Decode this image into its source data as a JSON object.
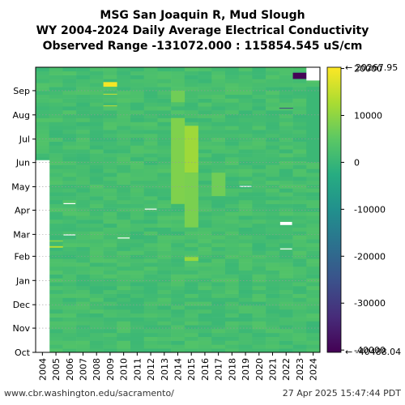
{
  "header": {
    "title_line1": "MSG San Joaquin R, Mud Slough",
    "title_line2": "WY 2004-2024 Daily Average Electrical Conductivity",
    "title_line3": "Observed Range -131072.000 : 115854.545 uS/cm"
  },
  "footer": {
    "source": "www.cbr.washington.edu/sacramento/",
    "timestamp": "27 Apr 2025 15:47:44 PDT"
  },
  "chart_data": {
    "type": "heatmap",
    "title": "MSG San Joaquin R, Mud Slough\nWY 2004-2024 Daily Average Electrical Conductivity\nObserved Range -131072.000 : 115854.545 uS/cm",
    "x_categories": [
      "2004",
      "2005",
      "2006",
      "2007",
      "2008",
      "2009",
      "2010",
      "2011",
      "2012",
      "2013",
      "2014",
      "2015",
      "2016",
      "2017",
      "2018",
      "2019",
      "2020",
      "2021",
      "2022",
      "2023",
      "2024"
    ],
    "y_categories": [
      "Oct",
      "Nov",
      "Dec",
      "Jan",
      "Feb",
      "Mar",
      "Apr",
      "May",
      "Jun",
      "Jul",
      "Aug",
      "Sep"
    ],
    "colorbar": {
      "ticks": [
        20000,
        10000,
        0,
        -10000,
        -20000,
        -30000,
        -40000
      ],
      "tick_labels": [
        "20000",
        "10000",
        "0",
        "-10000",
        "-20000",
        "-30000",
        "-40000"
      ],
      "min_label": "-40488.04",
      "max_label": "20267.95",
      "range": [
        -40488.04,
        20267.95
      ],
      "colormap": "viridis"
    },
    "typical_value": 2000,
    "missing_blocks": [
      {
        "year": "2004",
        "from_month": "Oct",
        "to_month": "Jun",
        "note": "no data (white)"
      },
      {
        "year": "2024",
        "from_month": "Sep",
        "to_month": "Sep",
        "note": "no data (white) late Sep"
      }
    ],
    "notable_values": [
      {
        "year": "2009",
        "month": "Sep",
        "value": 19500
      },
      {
        "year": "2014",
        "month": "Jul",
        "value": 9500
      },
      {
        "year": "2015",
        "month": "Jul",
        "value": 11500
      },
      {
        "year": "2022",
        "month": "Aug",
        "value": -28000
      },
      {
        "year": "2023",
        "month": "Sep",
        "value": -40000
      },
      {
        "year": "2022",
        "month": "Mar",
        "value": 20000
      }
    ],
    "grid": true,
    "legend_placement": "right"
  }
}
